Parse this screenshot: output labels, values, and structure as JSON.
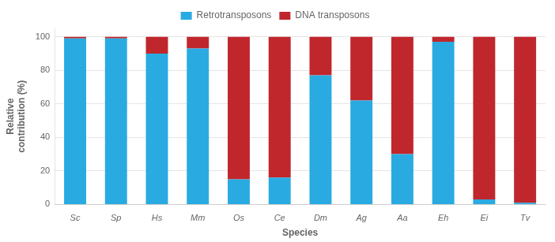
{
  "chart_data": {
    "type": "bar",
    "stacked": true,
    "categories": [
      "Sc",
      "Sp",
      "Hs",
      "Mm",
      "Os",
      "Ce",
      "Dm",
      "Ag",
      "Aa",
      "Eh",
      "Ei",
      "Tv"
    ],
    "series": [
      {
        "name": "Retrotransposons",
        "color": "#29ABE2",
        "values": [
          99,
          99,
          90,
          93,
          15,
          16,
          77,
          62,
          30,
          97,
          3,
          1
        ]
      },
      {
        "name": "DNA transposons",
        "color": "#C0272D",
        "values": [
          1,
          1,
          10,
          7,
          85,
          84,
          23,
          38,
          70,
          3,
          97,
          99
        ]
      }
    ],
    "xlabel": "Species",
    "ylabel": "Relative\ncontribution (%)",
    "ylim": [
      0,
      105
    ],
    "yticks": [
      0,
      20,
      40,
      60,
      80,
      100
    ],
    "grid": true,
    "legend": "top"
  }
}
